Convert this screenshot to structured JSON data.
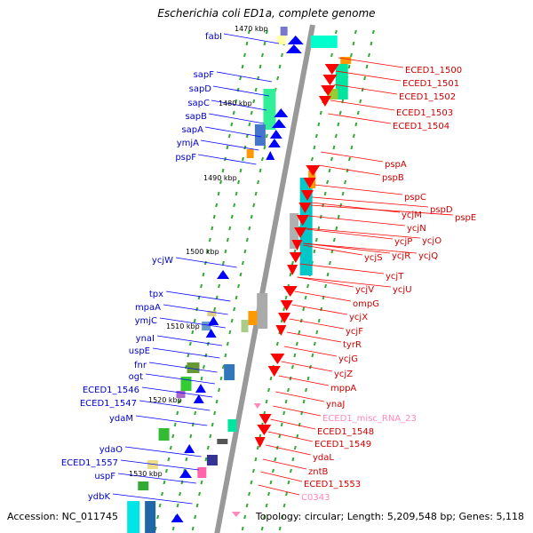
{
  "title": "Escherichia coli ED1a, complete genome",
  "footer": {
    "accession": "Accession: NC_011745",
    "summary": "Topology: circular; Length: 5,209,548 bp; Genes: 5,118"
  },
  "colors": {
    "forward_genes": "#0000ff",
    "reverse_genes": "#ff0000",
    "rna_genes": "#ff99cc",
    "backbone": "#999999",
    "dividers": "#33aa33"
  },
  "ticks": [
    "1470 kbp",
    "1480 kbp",
    "1490 kbp",
    "1500 kbp",
    "1510 kbp",
    "1520 kbp",
    "1530 kbp"
  ],
  "left_labels": [
    "fabI",
    "sapF",
    "sapD",
    "sapC",
    "sapB",
    "sapA",
    "ymjA",
    "pspF",
    "ycjW",
    "tpx",
    "mpaA",
    "ymjC",
    "ynaI",
    "uspE",
    "fnr",
    "ogt",
    "ECED1_1546",
    "ECED1_1547",
    "ydaM",
    "ydaO",
    "ECED1_1557",
    "uspF",
    "ydbK"
  ],
  "right_labels": [
    "ECED1_1500",
    "ECED1_1501",
    "ECED1_1502",
    "ECED1_1503",
    "ECED1_1504",
    "pspA",
    "pspB",
    "pspC",
    "pspD",
    "pspE",
    "ycjM",
    "ycjN",
    "ycjO",
    "ycjP",
    "ycjQ",
    "ycjR",
    "ycjS",
    "ycjT",
    "ycjU",
    "ycjV",
    "ompG",
    "ycjX",
    "ycjF",
    "tyrR",
    "ycjG",
    "ycjZ",
    "mppA",
    "ynaJ",
    "ECED1_misc_RNA_23",
    "ECED1_1548",
    "ECED1_1549",
    "ydaL",
    "zntB",
    "ECED1_1553",
    "C0343"
  ]
}
